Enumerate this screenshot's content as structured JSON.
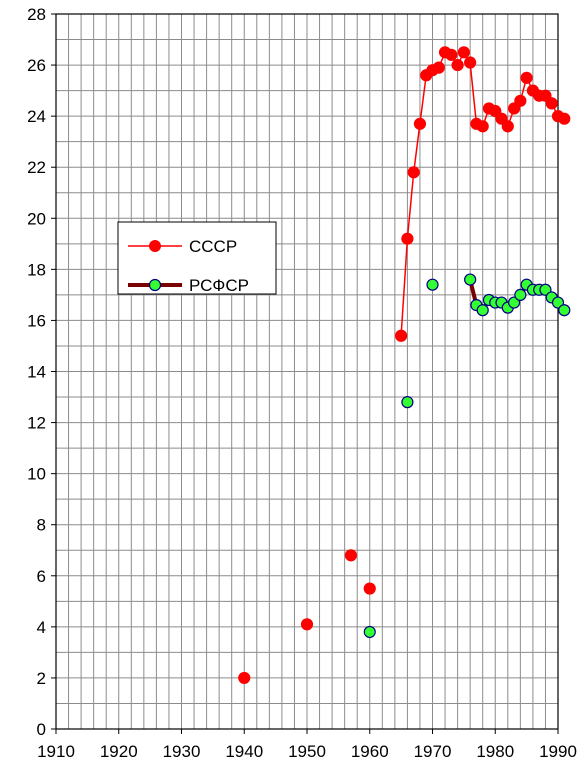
{
  "chart_data": {
    "type": "line",
    "title": "",
    "xlabel": "",
    "ylabel": "",
    "xlim": [
      1910,
      1990
    ],
    "ylim": [
      0,
      28
    ],
    "x_ticks": [
      1910,
      1920,
      1930,
      1940,
      1950,
      1960,
      1970,
      1980,
      1990
    ],
    "y_ticks": [
      0,
      2,
      4,
      6,
      8,
      10,
      12,
      14,
      16,
      18,
      20,
      22,
      24,
      26,
      28
    ],
    "x_minor_step": 2,
    "y_minor_step": 1,
    "grid": true,
    "legend_position": "left-middle",
    "series": [
      {
        "name": "СССР",
        "color": "#ff0000",
        "marker_color": "#ff0000",
        "marker_edge": "#ff0000",
        "line_width": 1.5,
        "points": [
          [
            1940,
            2.0
          ],
          [
            1950,
            4.1
          ],
          [
            1957,
            6.8
          ],
          [
            1960,
            5.5
          ],
          [
            1965,
            15.4
          ],
          [
            1966,
            19.2
          ],
          [
            1967,
            21.8
          ],
          [
            1968,
            23.7
          ],
          [
            1969,
            25.6
          ],
          [
            1970,
            25.8
          ],
          [
            1971,
            25.9
          ],
          [
            1972,
            26.5
          ],
          [
            1973,
            26.4
          ],
          [
            1974,
            26.0
          ],
          [
            1975,
            26.5
          ],
          [
            1976,
            26.1
          ],
          [
            1977,
            23.7
          ],
          [
            1978,
            23.6
          ],
          [
            1979,
            24.3
          ],
          [
            1980,
            24.2
          ],
          [
            1981,
            23.9
          ],
          [
            1982,
            23.6
          ],
          [
            1983,
            24.3
          ],
          [
            1984,
            24.6
          ],
          [
            1985,
            25.5
          ],
          [
            1986,
            25.0
          ],
          [
            1987,
            24.8
          ],
          [
            1988,
            24.8
          ],
          [
            1989,
            24.5
          ],
          [
            1990,
            24.0
          ],
          [
            1991,
            23.9
          ]
        ],
        "connected_from_year": 1965
      },
      {
        "name": "РСФСР",
        "color": "#7b0000",
        "marker_color": "#33ff33",
        "marker_edge": "#000080",
        "line_width": 4,
        "points": [
          [
            1960,
            3.8
          ],
          [
            1966,
            12.8
          ],
          [
            1970,
            17.4
          ],
          [
            1976,
            17.6
          ],
          [
            1977,
            16.6
          ],
          [
            1978,
            16.4
          ],
          [
            1979,
            16.8
          ],
          [
            1980,
            16.7
          ],
          [
            1981,
            16.7
          ],
          [
            1982,
            16.5
          ],
          [
            1983,
            16.7
          ],
          [
            1984,
            17.0
          ],
          [
            1985,
            17.4
          ],
          [
            1986,
            17.2
          ],
          [
            1987,
            17.2
          ],
          [
            1988,
            17.2
          ],
          [
            1989,
            16.9
          ],
          [
            1990,
            16.7
          ],
          [
            1991,
            16.4
          ]
        ],
        "connected_from_year": 1976
      }
    ]
  }
}
